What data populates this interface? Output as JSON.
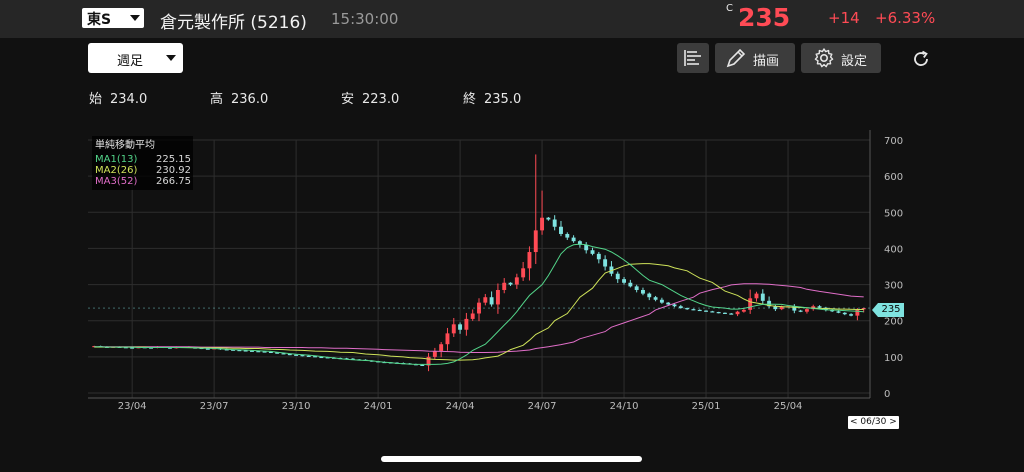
{
  "header": {
    "market": "東S",
    "stock_name": "倉元製作所 (5216)",
    "time": "15:30:00",
    "price_prefix": "C",
    "price": "235",
    "change": "+14",
    "change_pct": "+6.33%"
  },
  "toolbar": {
    "period": "週足",
    "draw_label": "描画",
    "settings_label": "設定"
  },
  "ohlc": {
    "open_label": "始",
    "open": "234.0",
    "high_label": "高",
    "high": "236.0",
    "low_label": "安",
    "low": "223.0",
    "close_label": "終",
    "close": "235.0"
  },
  "legend": {
    "title": "単純移動平均",
    "items": [
      {
        "name": "MA1(13)",
        "value": "225.15",
        "color": "#53d58a"
      },
      {
        "name": "MA2(26)",
        "value": "230.92",
        "color": "#cfe35a"
      },
      {
        "name": "MA3(52)",
        "value": "266.75",
        "color": "#e06ec8"
      }
    ]
  },
  "price_tag": "235",
  "date_tag": "< 06/30 >",
  "colors": {
    "up": "#ff4b55",
    "down": "#7fe3e0",
    "grid": "#2e2e2e",
    "bg": "#111111"
  },
  "chart_data": {
    "type": "candlestick",
    "x_ticks": [
      "23/04",
      "23/07",
      "23/10",
      "24/01",
      "24/04",
      "24/07",
      "24/10",
      "25/01",
      "25/04"
    ],
    "y_ticks": [
      0,
      100,
      200,
      300,
      400,
      500,
      600,
      700
    ],
    "ylim": [
      0,
      700
    ],
    "grid": true,
    "candles_note": "weekly",
    "weeks_per_tick": 13,
    "first_tick_week": 6,
    "closes": [
      130,
      128,
      126,
      128,
      127,
      126,
      125,
      127,
      126,
      125,
      128,
      126,
      124,
      127,
      128,
      126,
      125,
      123,
      122,
      124,
      121,
      120,
      119,
      118,
      117,
      116,
      115,
      114,
      112,
      110,
      108,
      106,
      105,
      103,
      102,
      100,
      99,
      98,
      97,
      96,
      95,
      93,
      92,
      90,
      88,
      86,
      85,
      84,
      83,
      82,
      80,
      78,
      76,
      100,
      115,
      135,
      165,
      190,
      175,
      205,
      220,
      250,
      265,
      245,
      285,
      305,
      300,
      320,
      345,
      390,
      450,
      485,
      480,
      460,
      440,
      430,
      420,
      410,
      395,
      385,
      370,
      350,
      330,
      315,
      305,
      295,
      285,
      275,
      265,
      258,
      250,
      245,
      240,
      235,
      232,
      230,
      228,
      226,
      224,
      222,
      220,
      218,
      225,
      230,
      262,
      275,
      255,
      240,
      232,
      238,
      240,
      228,
      225,
      232,
      240,
      236,
      230,
      226,
      222,
      218,
      214,
      230,
      235
    ],
    "ma1": [
      128,
      128,
      127,
      127,
      127,
      127,
      126,
      126,
      126,
      126,
      126,
      126,
      126,
      125,
      125,
      124,
      124,
      123,
      122,
      121,
      120,
      119,
      118,
      117,
      116,
      115,
      113,
      111,
      109,
      107,
      105,
      103,
      101,
      99,
      97,
      95,
      93,
      92,
      90,
      89,
      87,
      85,
      84,
      82,
      81,
      80,
      79,
      79,
      79,
      80,
      82,
      86,
      95,
      105,
      118,
      135,
      152,
      170,
      188,
      205,
      225,
      248,
      270,
      300,
      325,
      355,
      385,
      402,
      410,
      412,
      410,
      405,
      398,
      390,
      380,
      368,
      355,
      340,
      325,
      312,
      300,
      290,
      280,
      270,
      262,
      255,
      248,
      242,
      238,
      235,
      232,
      232,
      234,
      238,
      242,
      245,
      246,
      245,
      242,
      240,
      238,
      236,
      234,
      232,
      230,
      229,
      228,
      227,
      226,
      225
    ],
    "ma2": [
      127,
      127,
      127,
      127,
      127,
      127,
      127,
      126,
      126,
      126,
      126,
      126,
      125,
      125,
      125,
      125,
      124,
      124,
      123,
      123,
      122,
      121,
      120,
      119,
      118,
      117,
      116,
      115,
      114,
      113,
      112,
      110,
      108,
      106,
      104,
      102,
      100,
      98,
      96,
      94,
      93,
      92,
      91,
      91,
      92,
      94,
      97,
      102,
      110,
      120,
      132,
      146,
      162,
      180,
      200,
      220,
      242,
      265,
      290,
      312,
      332,
      345,
      352,
      356,
      358,
      358,
      356,
      352,
      346,
      338,
      328,
      318,
      306,
      294,
      282,
      270,
      260,
      252,
      246,
      242,
      240,
      238,
      237,
      236,
      235,
      234,
      233,
      232,
      232,
      231,
      231
    ],
    "ma3": [
      128,
      128,
      128,
      128,
      128,
      128,
      128,
      128,
      128,
      128,
      127,
      127,
      127,
      127,
      127,
      127,
      126,
      126,
      126,
      126,
      125,
      125,
      124,
      124,
      123,
      122,
      121,
      120,
      119,
      118,
      117,
      116,
      115,
      114,
      113,
      112,
      112,
      113,
      114,
      116,
      119,
      123,
      128,
      134,
      141,
      150,
      160,
      170,
      182,
      194,
      206,
      218,
      230,
      242,
      254,
      265,
      276,
      286,
      294,
      299,
      302,
      302,
      301,
      299,
      296,
      292,
      287,
      281,
      276,
      271,
      268,
      266
    ],
    "last": {
      "open": 234.0,
      "high": 236.0,
      "low": 223.0,
      "close": 235.0
    }
  }
}
